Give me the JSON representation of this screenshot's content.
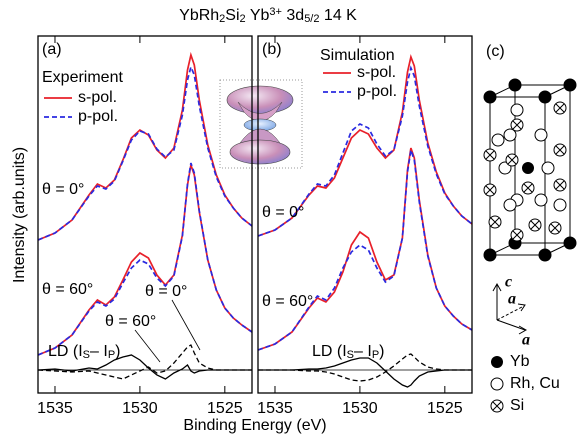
{
  "figure": {
    "title_parts": [
      {
        "text": "YbRh"
      },
      {
        "text": "2",
        "style": "sub"
      },
      {
        "text": "Si"
      },
      {
        "text": "2",
        "style": "sub"
      },
      {
        "text": "   Yb"
      },
      {
        "text": "3+",
        "style": "sup"
      },
      {
        "text": " 3d"
      },
      {
        "text": "5/2",
        "style": "sub"
      },
      {
        "text": " 14 K"
      }
    ],
    "x_label": "Binding Energy (eV)",
    "y_label": "Intensity (arb.units)"
  },
  "chart_data": [
    {
      "type": "line",
      "label": "(a)",
      "legend_title": "Experiment",
      "x": [
        1536,
        1535,
        1534,
        1533,
        1532.5,
        1532,
        1531.5,
        1531,
        1530.5,
        1530,
        1529.5,
        1529,
        1528.5,
        1528,
        1527.5,
        1527.2,
        1527,
        1526.8,
        1526.5,
        1526,
        1525.5,
        1525,
        1524.5,
        1524,
        1523.4
      ],
      "xlim": [
        1536,
        1523.4
      ],
      "xticks": [
        1535,
        1530,
        1525
      ],
      "ylim": [
        0,
        357
      ],
      "spectra": [
        {
          "label": "θ = 0°",
          "series": [
            {
              "name": "s-pol.",
              "color": "#e8202a",
              "dash": "solid",
              "values": [
                153,
                160,
                173,
                198,
                209,
                205,
                213,
                233,
                255,
                263,
                258,
                243,
                235,
                245,
                283,
                323,
                338,
                328,
                293,
                248,
                218,
                198,
                185,
                175,
                167
              ]
            },
            {
              "name": "p-pol.",
              "color": "#2a2ae0",
              "dash": "dashed",
              "values": [
                153,
                160,
                173,
                197,
                207,
                204,
                212,
                232,
                253,
                262,
                259,
                244,
                236,
                243,
                278,
                313,
                326,
                318,
                287,
                245,
                216,
                197,
                185,
                175,
                167
              ]
            }
          ]
        },
        {
          "label": "θ = 60°",
          "series": [
            {
              "color": "#e8202a",
              "dash": "solid",
              "values": [
                38,
                45,
                58,
                83,
                93,
                88,
                96,
                113,
                131,
                140,
                135,
                118,
                108,
                118,
                158,
                208,
                228,
                218,
                181,
                133,
                103,
                85,
                75,
                68,
                61
              ]
            },
            {
              "color": "#2a2ae0",
              "dash": "dashed",
              "values": [
                38,
                45,
                58,
                82,
                91,
                87,
                94,
                110,
                125,
                133,
                129,
                115,
                107,
                117,
                157,
                209,
                230,
                220,
                182,
                133,
                103,
                85,
                75,
                68,
                61
              ]
            }
          ]
        }
      ],
      "ld": {
        "label_parts": [
          {
            "text": "LD (I"
          },
          {
            "text": "S",
            "style": "sub"
          },
          {
            "text": "– I"
          },
          {
            "text": "P",
            "style": "sub"
          },
          {
            "text": ")"
          }
        ],
        "zero": 23,
        "series": [
          {
            "name": "θ = 0°",
            "color": "#000000",
            "dash": "dashed",
            "values": [
              23,
              22,
              21,
              22,
              20,
              18,
              16,
              14,
              18,
              22,
              26,
              20,
              22,
              30,
              40,
              46,
              48,
              40,
              30,
              25,
              23,
              23,
              23,
              23,
              23
            ]
          },
          {
            "name": "θ = 60°",
            "color": "#000000",
            "dash": "solid",
            "values": [
              23,
              24,
              22,
              25,
              24,
              28,
              33,
              36,
              38,
              33,
              25,
              18,
              14,
              20,
              24,
              28,
              22,
              20,
              22,
              23,
              23,
              23,
              23,
              23,
              23
            ]
          }
        ]
      }
    },
    {
      "type": "line",
      "label": "(b)",
      "legend_title": "Simulation",
      "x": [
        1536,
        1535,
        1534,
        1533,
        1532.5,
        1532,
        1531.5,
        1531,
        1530.5,
        1530,
        1529.5,
        1529,
        1528.5,
        1528,
        1527.5,
        1527.2,
        1527,
        1526.8,
        1526.5,
        1526,
        1525.5,
        1525,
        1524.5,
        1524,
        1523.4
      ],
      "xlim": [
        1536,
        1523.4
      ],
      "xticks": [
        1535,
        1530,
        1525
      ],
      "ylim": [
        0,
        357
      ],
      "spectra": [
        {
          "label": "θ = 0°",
          "series": [
            {
              "name": "s-pol.",
              "color": "#e8202a",
              "dash": "solid",
              "values": [
                157,
                163,
                175,
                198,
                207,
                205,
                215,
                235,
                255,
                263,
                259,
                245,
                235,
                243,
                281,
                321,
                336,
                327,
                293,
                250,
                221,
                200,
                187,
                177,
                169
              ]
            },
            {
              "name": "p-pol.",
              "color": "#2a2ae0",
              "dash": "dashed",
              "values": [
                157,
                163,
                175,
                199,
                209,
                207,
                218,
                240,
                262,
                269,
                265,
                249,
                237,
                243,
                277,
                311,
                325,
                317,
                287,
                247,
                219,
                199,
                187,
                177,
                169
              ]
            }
          ]
        },
        {
          "label": "θ = 60°",
          "series": [
            {
              "color": "#e8202a",
              "dash": "solid",
              "values": [
                43,
                49,
                61,
                85,
                95,
                91,
                101,
                121,
                148,
                161,
                155,
                131,
                113,
                118,
                155,
                223,
                245,
                235,
                193,
                138,
                105,
                87,
                77,
                69,
                63
              ]
            },
            {
              "color": "#2a2ae0",
              "dash": "dashed",
              "values": [
                43,
                49,
                61,
                86,
                97,
                93,
                105,
                125,
                141,
                148,
                143,
                125,
                111,
                117,
                155,
                221,
                243,
                233,
                191,
                137,
                105,
                87,
                77,
                69,
                63
              ]
            }
          ]
        }
      ],
      "ld": {
        "label_parts": [
          {
            "text": "LD (I"
          },
          {
            "text": "S",
            "style": "sub"
          },
          {
            "text": "– I"
          },
          {
            "text": "P",
            "style": "sub"
          },
          {
            "text": ")"
          }
        ],
        "zero": 23,
        "series": [
          {
            "color": "#000000",
            "dash": "dashed",
            "values": [
              23,
              23,
              23,
              22,
              22,
              21,
              19,
              16,
              13,
              12,
              13,
              16,
              21,
              27,
              34,
              38,
              39,
              36,
              31,
              26,
              24,
              23,
              23,
              23,
              23
            ]
          },
          {
            "color": "#000000",
            "dash": "solid",
            "values": [
              23,
              23,
              23,
              24,
              24,
              25,
              27,
              30,
              33,
              35,
              35,
              30,
              22,
              14,
              8,
              6,
              8,
              12,
              17,
              21,
              22,
              23,
              23,
              23,
              23
            ]
          }
        ]
      }
    }
  ],
  "structure": {
    "label": "(c)",
    "axes": [
      "c",
      "a",
      "a"
    ],
    "legend": [
      "Yb",
      "Rh, Cu",
      "Si"
    ]
  }
}
